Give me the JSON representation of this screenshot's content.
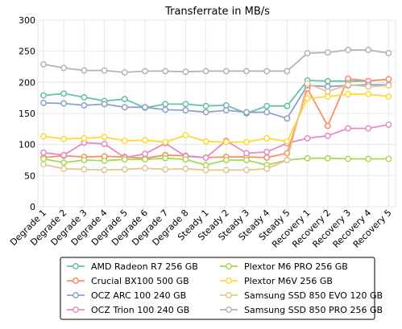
{
  "chart_data": {
    "type": "line",
    "title": "Transferrate in MB/s",
    "xlabel": "",
    "ylabel": "",
    "ylim": [
      0,
      300
    ],
    "yticks": [
      0,
      50,
      100,
      150,
      200,
      250,
      300
    ],
    "grid": true,
    "legend_position": "bottom-center",
    "categories": [
      "Degrade 1",
      "Degrade 2",
      "Degrade 3",
      "Degrade 4",
      "Degrade 5",
      "Degrade 6",
      "Degrade 7",
      "Degrade 8",
      "Steady 1",
      "Steady 2",
      "Steady 3",
      "Steady 4",
      "Steady 5",
      "Recovery 1",
      "Recovery 2",
      "Recovery 3",
      "Recovery 4",
      "Recovery 5"
    ],
    "series": [
      {
        "name": "AMD Radeon R7 256 GB",
        "color": "#66c2a5",
        "values": [
          179,
          182,
          176,
          170,
          173,
          159,
          165,
          165,
          162,
          163,
          150,
          162,
          162,
          203,
          202,
          202,
          202,
          205
        ]
      },
      {
        "name": "Crucial BX100 500 GB",
        "color": "#fc8d62",
        "values": [
          79,
          82,
          80,
          81,
          80,
          78,
          83,
          82,
          79,
          80,
          80,
          79,
          86,
          190,
          130,
          206,
          202,
          205
        ]
      },
      {
        "name": "OCZ ARC 100 240 GB",
        "color": "#8da0cb",
        "values": [
          167,
          166,
          163,
          165,
          160,
          160,
          156,
          155,
          152,
          155,
          152,
          152,
          142,
          195,
          193,
          195,
          196,
          196
        ]
      },
      {
        "name": "OCZ Trion 100 240 GB",
        "color": "#e78ac3",
        "values": [
          87,
          83,
          103,
          101,
          79,
          85,
          102,
          81,
          79,
          106,
          86,
          88,
          102,
          110,
          114,
          126,
          126,
          132
        ]
      },
      {
        "name": "Plextor M6 PRO 256 GB",
        "color": "#a6d854",
        "values": [
          77,
          71,
          75,
          74,
          76,
          76,
          78,
          76,
          67,
          75,
          75,
          67,
          75,
          78,
          78,
          77,
          77,
          77
        ]
      },
      {
        "name": "Plextor M6V 256 GB",
        "color": "#ffd92f",
        "values": [
          113,
          109,
          110,
          112,
          106,
          107,
          104,
          115,
          105,
          104,
          104,
          110,
          105,
          174,
          177,
          181,
          181,
          177
        ]
      },
      {
        "name": "Samsung SSD 850 EVO 120 GB",
        "color": "#e5c494",
        "values": [
          68,
          61,
          60,
          59,
          60,
          62,
          60,
          61,
          59,
          59,
          59,
          61,
          75,
          198,
          185,
          196,
          193,
          195
        ]
      },
      {
        "name": "Samsung SSD 850 PRO 256 GB",
        "color": "#b3b3b3",
        "values": [
          229,
          223,
          219,
          219,
          216,
          218,
          218,
          217,
          218,
          218,
          218,
          218,
          218,
          247,
          248,
          252,
          252,
          247
        ]
      }
    ]
  }
}
